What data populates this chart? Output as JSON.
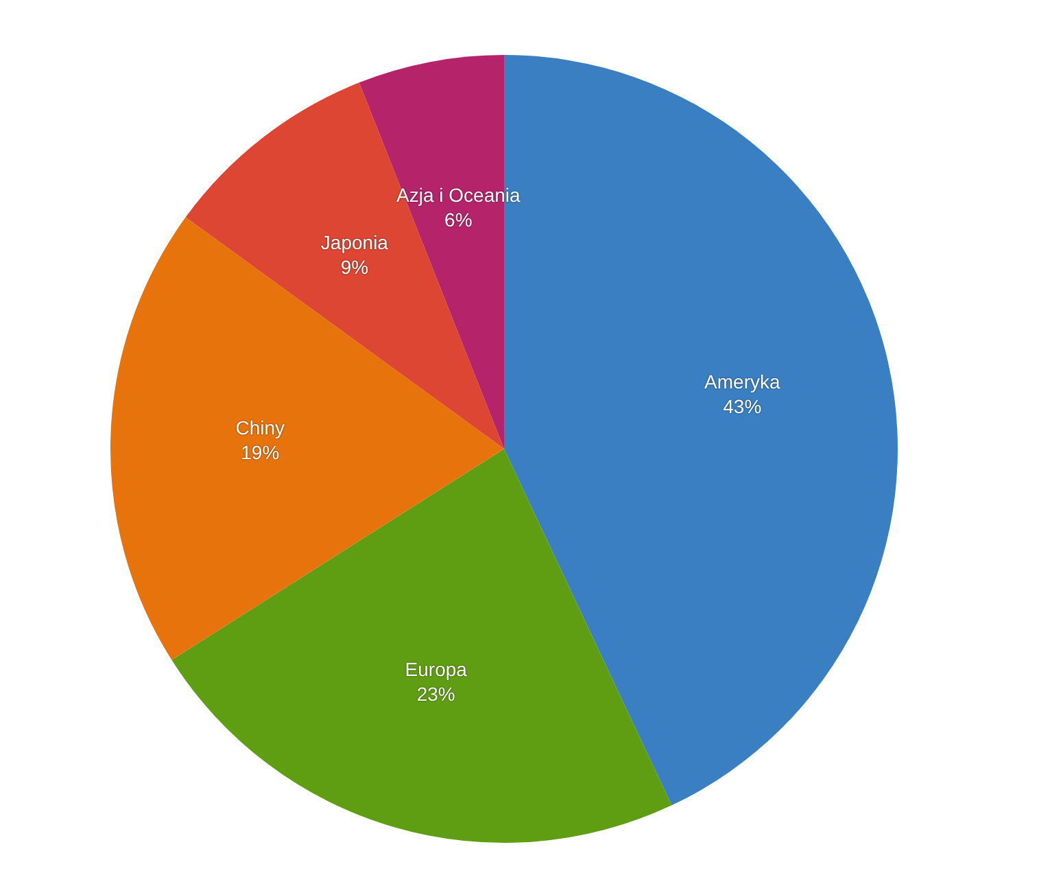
{
  "chart_data": {
    "type": "pie",
    "categories": [
      "Ameryka",
      "Europa",
      "Chiny",
      "Japonia",
      "Azja i Oceania"
    ],
    "values": [
      43,
      23,
      19,
      9,
      6
    ],
    "colors": [
      "#3a7fc1",
      "#5f9e12",
      "#e6730c",
      "#dc4632",
      "#b5246b"
    ],
    "value_labels": [
      "43%",
      "23%",
      "19%",
      "9%",
      "6%"
    ]
  }
}
